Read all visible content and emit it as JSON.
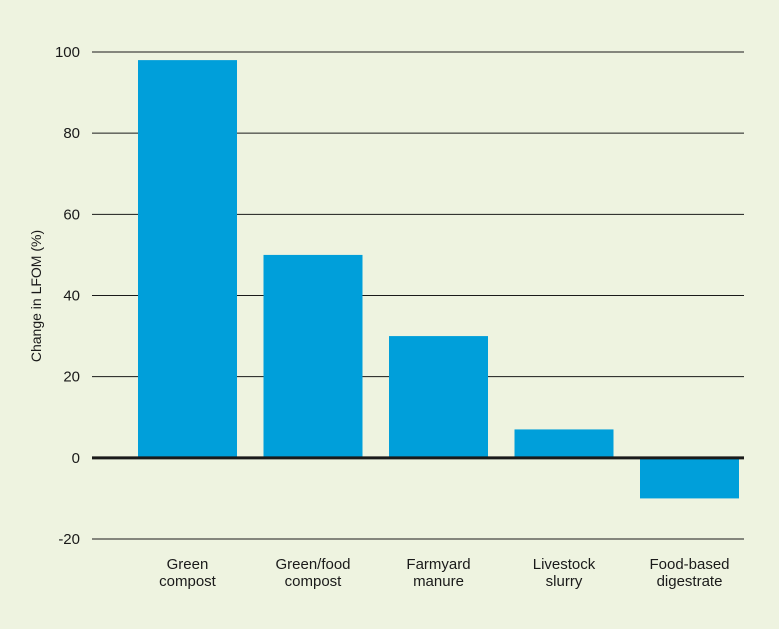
{
  "chart_data": {
    "type": "bar",
    "title": "",
    "xlabel": "",
    "ylabel": "Change in LFOM (%)",
    "categories": [
      [
        "Green",
        "compost"
      ],
      [
        "Green/food",
        "compost"
      ],
      [
        "Farmyard",
        "manure"
      ],
      [
        "Livestock",
        "slurry"
      ],
      [
        "Food-based",
        "digestrate"
      ]
    ],
    "values": [
      98,
      50,
      30,
      7,
      -10
    ],
    "ylim": [
      -20,
      100
    ],
    "yticks": [
      100,
      80,
      60,
      40,
      20,
      0,
      -20
    ],
    "grid": true,
    "legend": "none"
  },
  "colors": {
    "background": "#eef3e0",
    "bar": "#009fda",
    "grid": "#1a1a1a",
    "text": "#1a1a1a"
  }
}
